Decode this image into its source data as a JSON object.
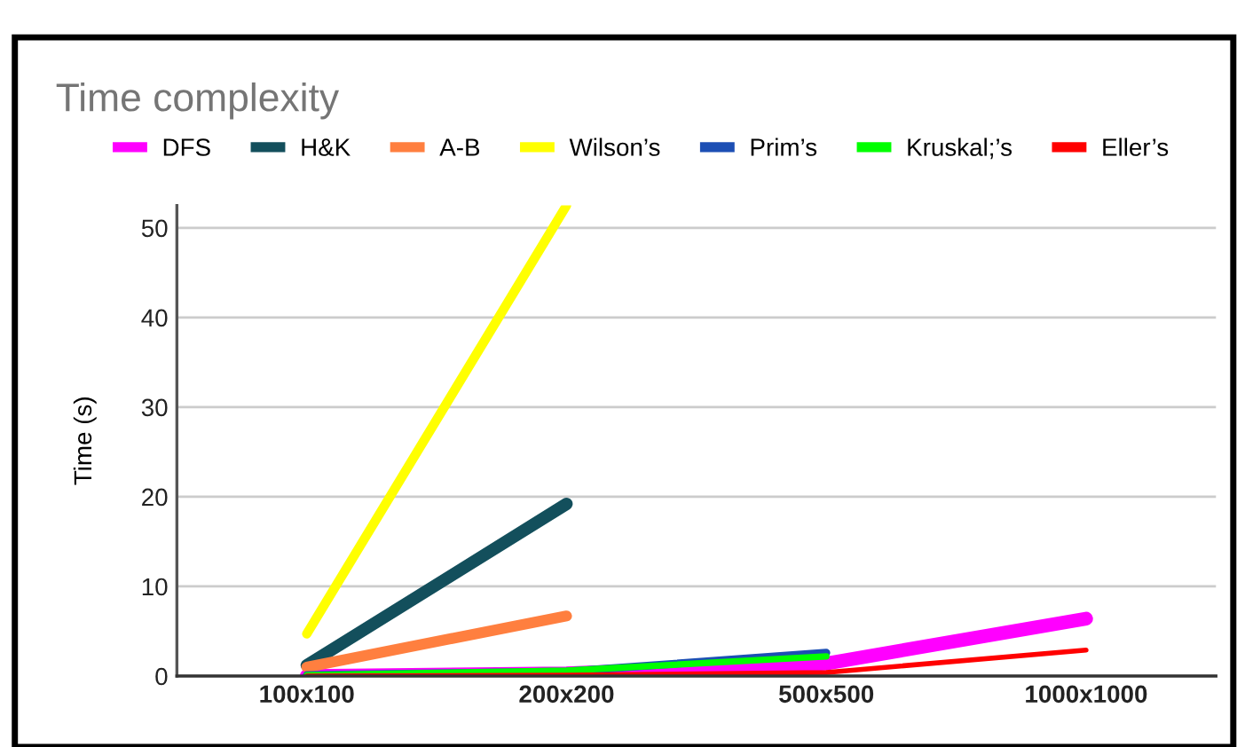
{
  "chart_data": {
    "type": "line",
    "title": "Time complexity",
    "ylabel": "Time (s)",
    "categories": [
      "100x100",
      "200x200",
      "500x500",
      "1000x1000"
    ],
    "series": [
      {
        "name": "DFS",
        "color": "#ff00ff",
        "values": [
          0,
          0.3,
          1.4,
          6.4
        ]
      },
      {
        "name": "H&K",
        "color": "#134f5c",
        "values": [
          1.2,
          19.2,
          null,
          null
        ]
      },
      {
        "name": "A-B",
        "color": "#ff7f3f",
        "values": [
          1.0,
          6.7,
          null,
          null
        ]
      },
      {
        "name": "Wilson’s",
        "color": "#ffff00",
        "values": [
          4.7,
          52.5,
          null,
          null
        ]
      },
      {
        "name": "Prim’s",
        "color": "#1c4fb4",
        "values": [
          0.1,
          0.5,
          2.6,
          null
        ]
      },
      {
        "name": "Kruskal;’s",
        "color": "#00ff00",
        "values": [
          0.1,
          0.6,
          2.2,
          null
        ]
      },
      {
        "name": "Eller’s",
        "color": "#ff0000",
        "values": [
          0,
          0.1,
          0.4,
          2.9
        ]
      }
    ],
    "ylim": [
      0,
      52.5
    ],
    "yticks": [
      0,
      10,
      20,
      30,
      40,
      50
    ],
    "grid": "y",
    "legend": "top",
    "marker": "none",
    "line_style": "solid"
  }
}
